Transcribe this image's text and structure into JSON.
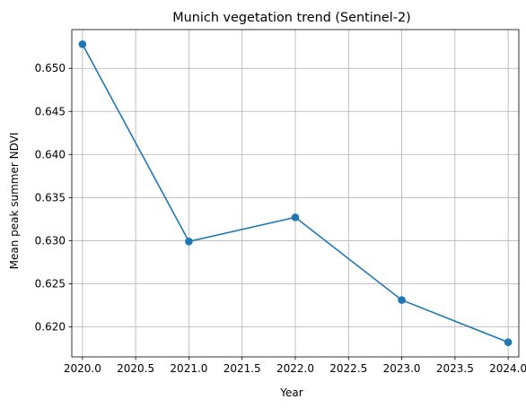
{
  "chart_data": {
    "type": "line",
    "title": "Munich vegetation trend (Sentinel-2)",
    "xlabel": "Year",
    "ylabel": "Mean peak summer NDVI",
    "xlim": [
      2019.9,
      2024.1
    ],
    "ylim": [
      0.6165,
      0.6545
    ],
    "xticks": [
      2020.0,
      2020.5,
      2021.0,
      2021.5,
      2022.0,
      2022.5,
      2023.0,
      2023.5,
      2024.0
    ],
    "xtick_labels": [
      "2020.0",
      "2020.5",
      "2021.0",
      "2021.5",
      "2022.0",
      "2022.5",
      "2023.0",
      "2023.5",
      "2024.0"
    ],
    "yticks": [
      0.62,
      0.625,
      0.63,
      0.635,
      0.64,
      0.645,
      0.65
    ],
    "ytick_labels": [
      "0.620",
      "0.625",
      "0.630",
      "0.635",
      "0.640",
      "0.645",
      "0.650"
    ],
    "grid": true,
    "series": [
      {
        "color": "#1f77b4",
        "marker": "circle",
        "x": [
          2020,
          2021,
          2022,
          2023,
          2024
        ],
        "y": [
          0.6528,
          0.6299,
          0.6327,
          0.6231,
          0.6182
        ]
      }
    ]
  }
}
